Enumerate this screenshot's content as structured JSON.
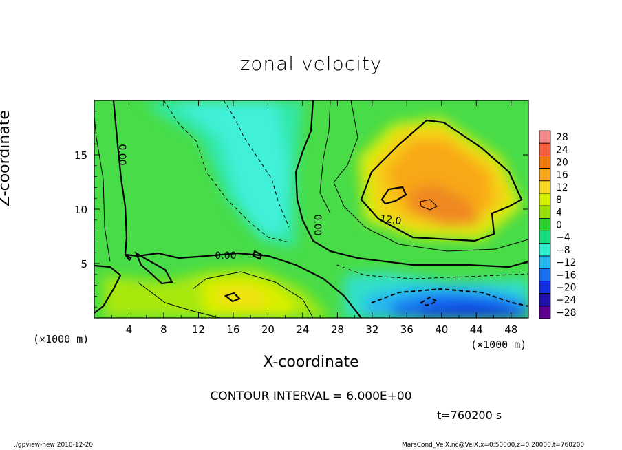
{
  "chart_data": {
    "type": "heatmap",
    "title": "zonal velocity",
    "xlabel": "X-coordinate",
    "ylabel": "Z-coordinate",
    "x_unit": "(×1000 m)",
    "y_unit": "(×1000 m)",
    "xlim": [
      0,
      50
    ],
    "ylim": [
      0,
      20
    ],
    "x_ticks": [
      4,
      8,
      12,
      16,
      20,
      24,
      28,
      32,
      36,
      40,
      44,
      48
    ],
    "y_ticks": [
      5,
      10,
      15
    ],
    "colorbar": {
      "levels": [
        28,
        24,
        20,
        16,
        12,
        8,
        4,
        0,
        -4,
        -8,
        -12,
        -16,
        -20,
        -24,
        -28
      ],
      "colors": [
        "#f48a8a",
        "#f46040",
        "#f07a10",
        "#f8a818",
        "#f8d820",
        "#d6f000",
        "#9ae00a",
        "#30d030",
        "#18dc80",
        "#30f0d0",
        "#28b8f0",
        "#1870f0",
        "#1030e0",
        "#2010b0",
        "#600090"
      ]
    },
    "contour_labels": [
      "0.00",
      "12.0",
      "0.00",
      "0.00"
    ],
    "grid": false
  },
  "footer": {
    "contour_interval": "CONTOUR INTERVAL = 6.000E+00",
    "time": "t=760200 s",
    "left": "./gpview-new  2010-12-20",
    "right": "MarsCond_VelX.nc@VelX,x=0:50000,z=0:20000,t=760200"
  }
}
